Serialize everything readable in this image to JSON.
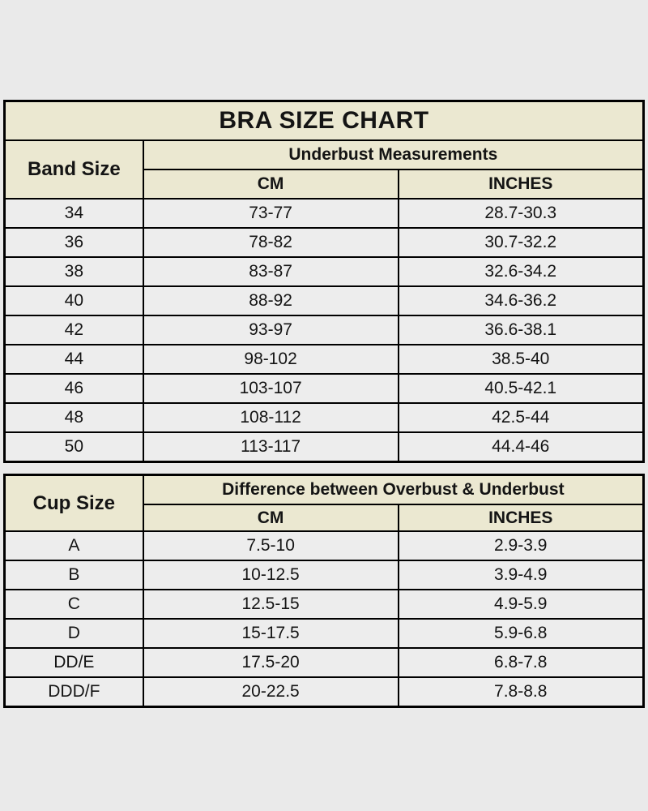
{
  "colors": {
    "page_background": "#EAEAEA",
    "header_background": "#EBE8D1",
    "row_background": "#EDEDED",
    "border": "#000000",
    "text": "#141414"
  },
  "chart_data": [
    {
      "type": "table",
      "title": "BRA SIZE CHART",
      "corner_header": "Band Size",
      "group_header": "Underbust Measurements",
      "columns": [
        "CM",
        "INCHES"
      ],
      "rows": [
        [
          "34",
          "73-77",
          "28.7-30.3"
        ],
        [
          "36",
          "78-82",
          "30.7-32.2"
        ],
        [
          "38",
          "83-87",
          "32.6-34.2"
        ],
        [
          "40",
          "88-92",
          "34.6-36.2"
        ],
        [
          "42",
          "93-97",
          "36.6-38.1"
        ],
        [
          "44",
          "98-102",
          "38.5-40"
        ],
        [
          "46",
          "103-107",
          "40.5-42.1"
        ],
        [
          "48",
          "108-112",
          "42.5-44"
        ],
        [
          "50",
          "113-117",
          "44.4-46"
        ]
      ]
    },
    {
      "type": "table",
      "title": "",
      "corner_header": "Cup Size",
      "group_header": "Difference between Overbust & Underbust",
      "columns": [
        "CM",
        "INCHES"
      ],
      "rows": [
        [
          "A",
          "7.5-10",
          "2.9-3.9"
        ],
        [
          "B",
          "10-12.5",
          "3.9-4.9"
        ],
        [
          "C",
          "12.5-15",
          "4.9-5.9"
        ],
        [
          "D",
          "15-17.5",
          "5.9-6.8"
        ],
        [
          "DD/E",
          "17.5-20",
          "6.8-7.8"
        ],
        [
          "DDD/F",
          "20-22.5",
          "7.8-8.8"
        ]
      ]
    }
  ]
}
